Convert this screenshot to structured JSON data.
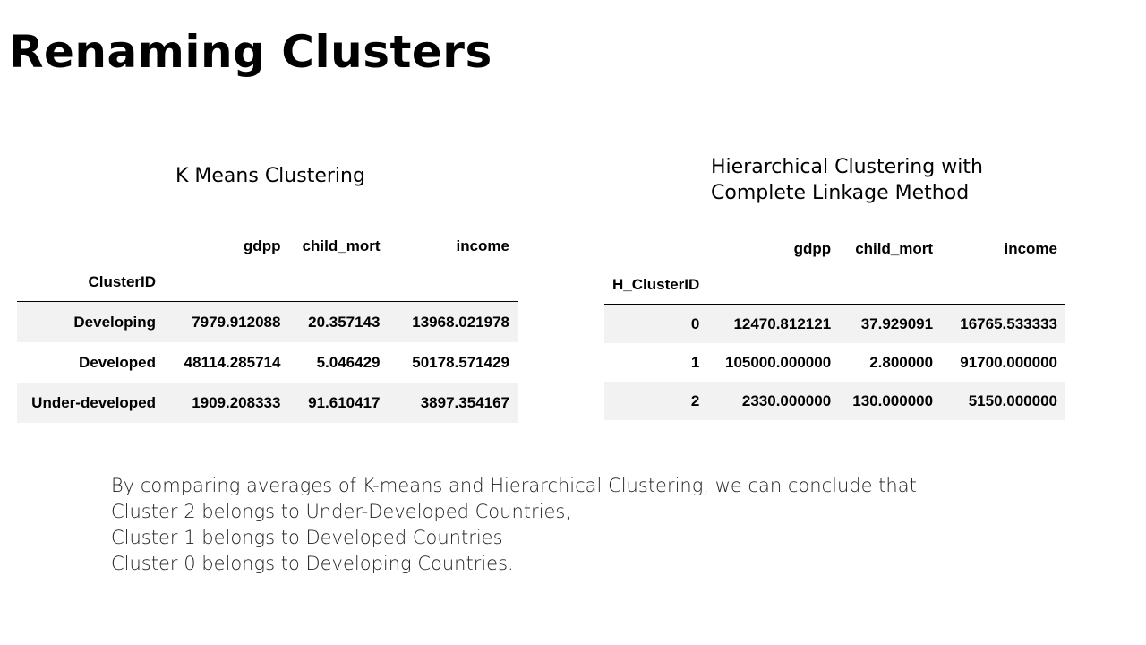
{
  "title": "Renaming Clusters",
  "kmeans": {
    "heading": "K Means Clustering",
    "columns": [
      "gdpp",
      "child_mort",
      "income"
    ],
    "index_name": "ClusterID",
    "rows": [
      {
        "label": "Developing",
        "gdpp": "7979.912088",
        "child_mort": "20.357143",
        "income": "13968.021978"
      },
      {
        "label": "Developed",
        "gdpp": "48114.285714",
        "child_mort": "5.046429",
        "income": "50178.571429"
      },
      {
        "label": "Under-developed",
        "gdpp": "1909.208333",
        "child_mort": "91.610417",
        "income": "3897.354167"
      }
    ]
  },
  "hierarchical": {
    "heading_line1": "Hierarchical Clustering with",
    "heading_line2": "Complete Linkage Method",
    "columns": [
      "gdpp",
      "child_mort",
      "income"
    ],
    "index_name": "H_ClusterID",
    "rows": [
      {
        "label": "0",
        "gdpp": "12470.812121",
        "child_mort": "37.929091",
        "income": "16765.533333"
      },
      {
        "label": "1",
        "gdpp": "105000.000000",
        "child_mort": "2.800000",
        "income": "91700.000000"
      },
      {
        "label": "2",
        "gdpp": "2330.000000",
        "child_mort": "130.000000",
        "income": "5150.000000"
      }
    ]
  },
  "conclusion": {
    "line1": "By comparing averages of K-means and Hierarchical Clustering, we can conclude that",
    "line2": "Cluster 2 belongs to Under-Developed Countries,",
    "line3": "Cluster 1 belongs to Developed Countries",
    "line4": "Cluster 0 belongs to Developing Countries."
  }
}
